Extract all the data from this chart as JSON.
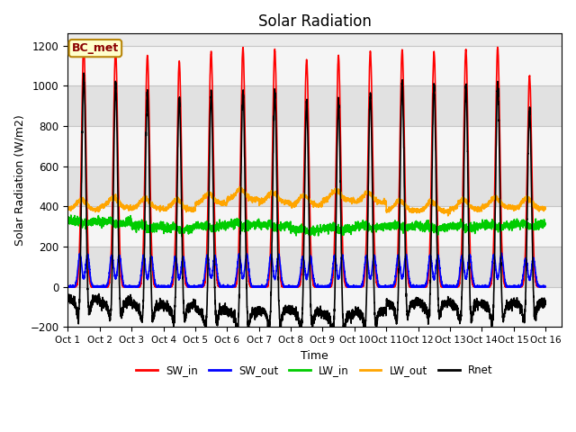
{
  "title": "Solar Radiation",
  "xlabel": "Time",
  "ylabel": "Solar Radiation (W/m2)",
  "ylim": [
    -200,
    1260
  ],
  "yticks": [
    -200,
    0,
    200,
    400,
    600,
    800,
    1000,
    1200
  ],
  "xlim_start": 0,
  "xlim_end": 15.5,
  "annotation_text": "BC_met",
  "annotation_color": "#8B0000",
  "annotation_bg": "#FFFFCC",
  "annotation_border": "#B8860B",
  "series_colors": {
    "SW_in": "#FF0000",
    "SW_out": "#0000FF",
    "LW_in": "#00CC00",
    "LW_out": "#FFA500",
    "Rnet": "#000000"
  },
  "n_days": 15,
  "points_per_day": 288,
  "facecolor": "#E8E8E8",
  "sw_peaks": [
    1200,
    1180,
    1150,
    1120,
    1170,
    1190,
    1180,
    1130,
    1150,
    1170,
    1180,
    1170,
    1180,
    1190,
    1050
  ],
  "lw_in_base": [
    330,
    325,
    305,
    295,
    305,
    315,
    310,
    285,
    295,
    305,
    305,
    300,
    305,
    310,
    315
  ],
  "lw_out_base": [
    385,
    395,
    390,
    385,
    415,
    435,
    420,
    405,
    430,
    420,
    380,
    375,
    385,
    395,
    390
  ]
}
